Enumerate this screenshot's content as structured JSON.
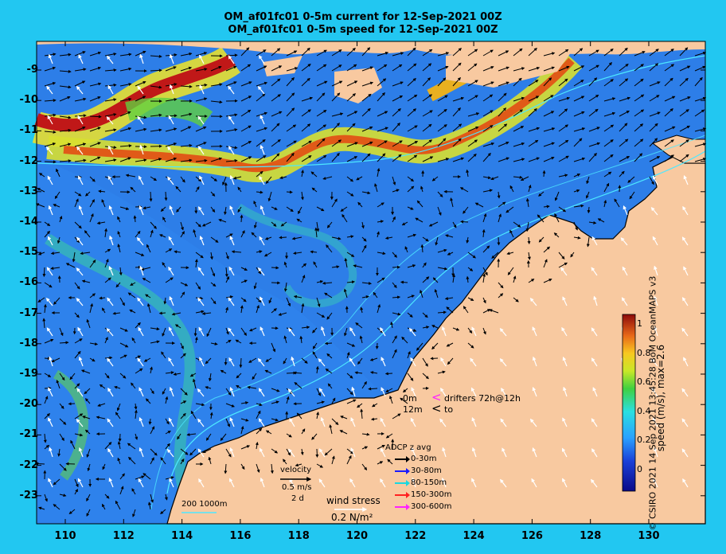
{
  "titles": {
    "line1": "OM_af01fc01 0-5m current for 12-Sep-2021 00Z",
    "line2": "OM_af01fc01 0-5m speed for 12-Sep-2021 00Z"
  },
  "axes": {
    "y_ticks": [
      "-9",
      "-10",
      "-11",
      "-12",
      "-13",
      "-14",
      "-15",
      "-16",
      "-17",
      "-18",
      "-19",
      "-20",
      "-21",
      "-22",
      "-23"
    ],
    "x_ticks": [
      "110",
      "112",
      "114",
      "116",
      "118",
      "120",
      "122",
      "124",
      "126",
      "128",
      "130"
    ]
  },
  "colorbar": {
    "ticks": [
      "1",
      "0.8",
      "0.6",
      "0.4",
      "0.2",
      "0"
    ],
    "title": "speed (m/s), max=2.6"
  },
  "credit": "© CSIRO 2021  14 Sep 2021 13:45:28 BoM OceanMAPS v3",
  "drifters": {
    "row1_depth": "0m",
    "row1_label": "drifters 72h@12h",
    "row2_depth": "12m",
    "row2_label": "to"
  },
  "adcp": {
    "title": "ADCP z avg",
    "rows": [
      {
        "label": "0-30m",
        "color": "#000000"
      },
      {
        "label": "30-80m",
        "color": "#1a1aff"
      },
      {
        "label": "80-150m",
        "color": "#18d8e0"
      },
      {
        "label": "150-300m",
        "color": "#ff2020"
      },
      {
        "label": "300-600m",
        "color": "#ff20ff"
      }
    ]
  },
  "velocity_legend": {
    "title": "velocity",
    "speed": "0.5 m/s",
    "duration": "2 d"
  },
  "wind_legend": {
    "title": "wind stress",
    "value": "0.2 N/m²"
  },
  "isobaths": {
    "label": "200  1000m"
  },
  "colors": {
    "background": "#22c7f1",
    "land": "#f8c9a0",
    "ocean_low": "#1f63e0",
    "ocean_mid": "#36a3f0",
    "jet_high": "#c01818"
  }
}
